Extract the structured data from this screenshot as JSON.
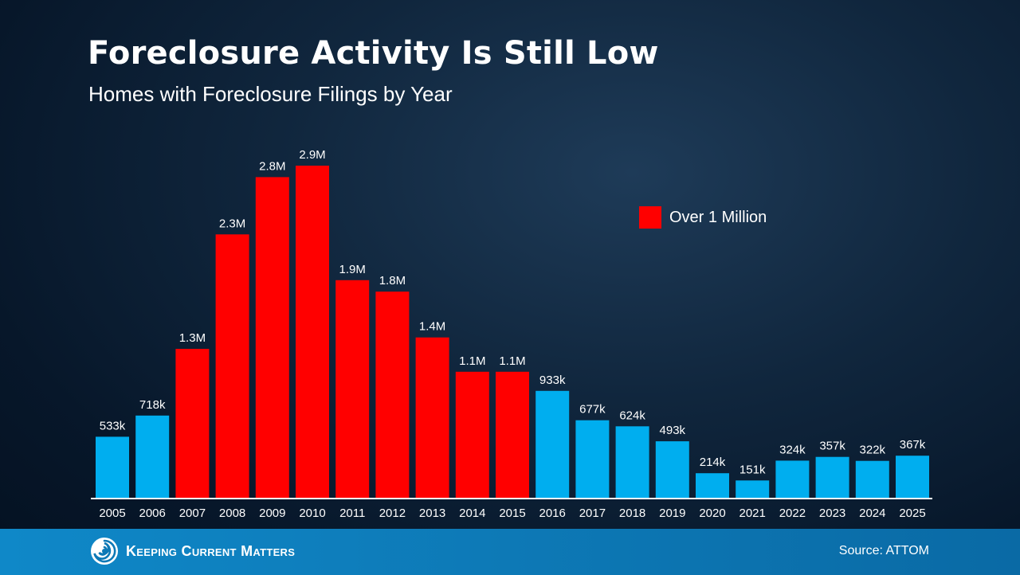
{
  "colors": {
    "high": "#ff0000",
    "low": "#00aeef",
    "axis": "#ffffff",
    "footer": "#0d79b6"
  },
  "chart_data": {
    "type": "bar",
    "title": "Foreclosure Activity Is Still Low",
    "subtitle": "Homes with Foreclosure Filings by Year",
    "categories": [
      "2005",
      "2006",
      "2007",
      "2008",
      "2009",
      "2010",
      "2011",
      "2012",
      "2013",
      "2014",
      "2015",
      "2016",
      "2017",
      "2018",
      "2019",
      "2020",
      "2021",
      "2022",
      "2023",
      "2024",
      "2025"
    ],
    "values": [
      533000,
      718000,
      1300000,
      2300000,
      2800000,
      2900000,
      1900000,
      1800000,
      1400000,
      1100000,
      1100000,
      933000,
      677000,
      624000,
      493000,
      214000,
      151000,
      324000,
      357000,
      322000,
      367000
    ],
    "labels": [
      "533k",
      "718k",
      "1.3M",
      "2.3M",
      "2.8M",
      "2.9M",
      "1.9M",
      "1.8M",
      "1.4M",
      "1.1M",
      "1.1M",
      "933k",
      "677k",
      "624k",
      "493k",
      "214k",
      "151k",
      "324k",
      "357k",
      "322k",
      "367k"
    ],
    "highlight": [
      false,
      false,
      true,
      true,
      true,
      true,
      true,
      true,
      true,
      true,
      true,
      false,
      false,
      false,
      false,
      false,
      false,
      false,
      false,
      false,
      false
    ],
    "legend": [
      {
        "name": "Over 1 Million",
        "color": "#ff0000"
      }
    ],
    "legend_position": "top-right",
    "ylim": [
      0,
      2900000
    ],
    "grid": false
  },
  "footer": {
    "brand": "Keeping Current Matters",
    "source": "Source: ATTOM"
  }
}
